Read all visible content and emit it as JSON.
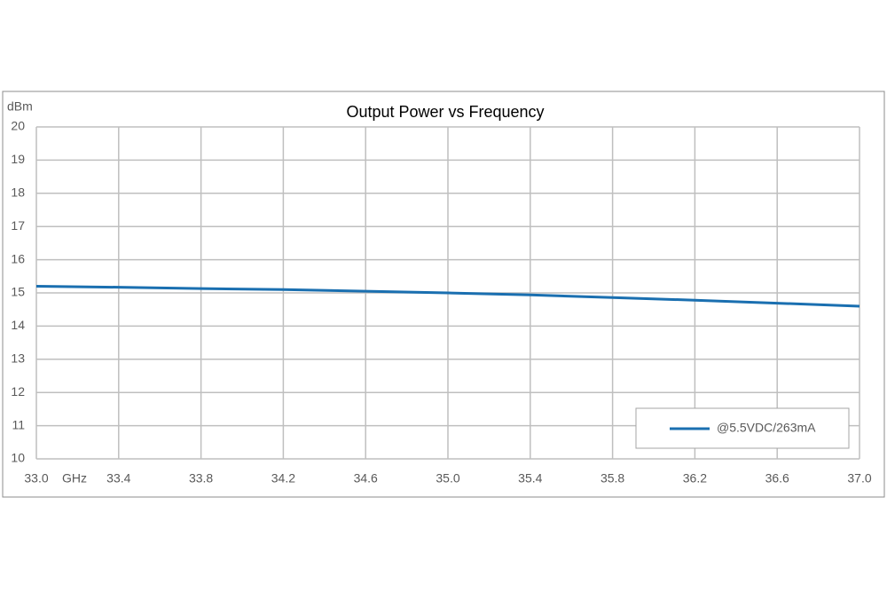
{
  "chart_data": {
    "type": "line",
    "title": "Output Power vs Frequency",
    "y_label": "dBm",
    "x_label": "GHz",
    "x": [
      33.0,
      33.4,
      33.8,
      34.2,
      34.6,
      35.0,
      35.4,
      35.8,
      36.2,
      36.6,
      37.0
    ],
    "series": [
      {
        "name": "@5.5VDC/263mA",
        "color": "#1a6fb0",
        "values": [
          15.2,
          15.17,
          15.13,
          15.1,
          15.05,
          15.0,
          14.94,
          14.86,
          14.78,
          14.69,
          14.6
        ]
      }
    ],
    "xlim": [
      33,
      37
    ],
    "xticks": [
      {
        "value": 33,
        "label": "33.0"
      },
      33.4,
      33.8,
      34.2,
      34.6,
      {
        "value": 35,
        "label": "35.0"
      },
      35.4,
      35.8,
      36.2,
      36.6,
      {
        "value": 37,
        "label": "37.0"
      }
    ],
    "ylim": [
      10,
      20
    ],
    "yticks": [
      10,
      11,
      12,
      13,
      14,
      15,
      16,
      17,
      18,
      19,
      20
    ],
    "grid": true,
    "legend": "lower right"
  }
}
